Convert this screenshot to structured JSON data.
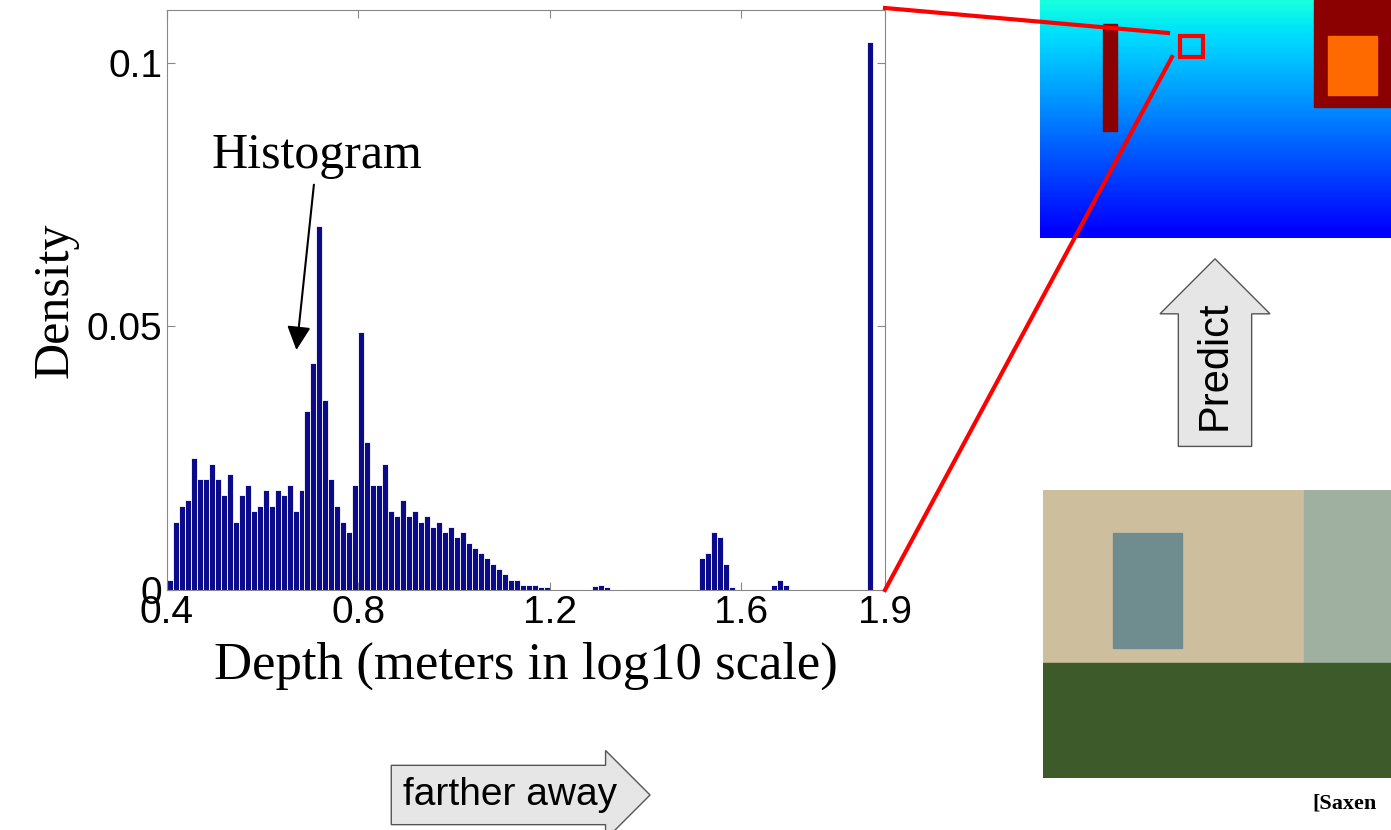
{
  "chart_data": {
    "type": "histogram",
    "bins": [
      0.4,
      0.4125,
      0.425,
      0.4375,
      0.45,
      0.4625,
      0.475,
      0.4875,
      0.5,
      0.5125,
      0.525,
      0.5375,
      0.55,
      0.5625,
      0.575,
      0.5875,
      0.6,
      0.6125,
      0.625,
      0.6375,
      0.65,
      0.6625,
      0.675,
      0.6875,
      0.7,
      0.7125,
      0.725,
      0.7375,
      0.75,
      0.7625,
      0.775,
      0.7875,
      0.8,
      0.8125,
      0.825,
      0.8375,
      0.85,
      0.8625,
      0.875,
      0.8875,
      0.9,
      0.9125,
      0.925,
      0.9375,
      0.95,
      0.9625,
      0.975,
      0.9875,
      1.0,
      1.0125,
      1.025,
      1.0375,
      1.05,
      1.0625,
      1.075,
      1.0875,
      1.1,
      1.1125,
      1.125,
      1.1375,
      1.15,
      1.1625,
      1.175,
      1.1875,
      1.2,
      1.2125,
      1.225,
      1.2375,
      1.25,
      1.2625,
      1.275,
      1.2875,
      1.3,
      1.3125,
      1.325,
      1.3375,
      1.35,
      1.3625,
      1.375,
      1.3875,
      1.4,
      1.4125,
      1.425,
      1.4375,
      1.45,
      1.4625,
      1.475,
      1.4875,
      1.5,
      1.5125,
      1.525,
      1.5375,
      1.55,
      1.5625,
      1.575,
      1.5875,
      1.6,
      1.6125,
      1.625,
      1.6375,
      1.65,
      1.6625,
      1.675,
      1.6875,
      1.7,
      1.7125,
      1.725,
      1.7375,
      1.75,
      1.7625,
      1.775,
      1.7875,
      1.8,
      1.8125,
      1.825,
      1.8375,
      1.85,
      1.8625,
      1.875,
      1.8875,
      1.9
    ],
    "counts": [
      0.002,
      0.013,
      0.016,
      0.017,
      0.025,
      0.021,
      0.021,
      0.024,
      0.021,
      0.018,
      0.022,
      0.013,
      0.018,
      0.02,
      0.015,
      0.016,
      0.019,
      0.016,
      0.019,
      0.018,
      0.02,
      0.015,
      0.019,
      0.034,
      0.043,
      0.069,
      0.036,
      0.021,
      0.016,
      0.013,
      0.011,
      0.02,
      0.049,
      0.028,
      0.02,
      0.02,
      0.024,
      0.015,
      0.014,
      0.017,
      0.014,
      0.015,
      0.013,
      0.014,
      0.012,
      0.013,
      0.011,
      0.012,
      0.01,
      0.011,
      0.009,
      0.008,
      0.007,
      0.006,
      0.005,
      0.004,
      0.003,
      0.002,
      0.002,
      0.001,
      0.001,
      0.001,
      0.0005,
      0.0005,
      0,
      0,
      0,
      0,
      0,
      0,
      0,
      0.0008,
      0.001,
      0.0005,
      0,
      0,
      0,
      0,
      0,
      0,
      0,
      0,
      0,
      0,
      0,
      0,
      0,
      0,
      0,
      0.006,
      0.007,
      0.011,
      0.01,
      0.005,
      0.0005,
      0,
      0,
      0,
      0,
      0,
      0,
      0.001,
      0.002,
      0.001,
      0,
      0,
      0,
      0,
      0,
      0,
      0,
      0,
      0,
      0,
      0,
      0,
      0,
      0.104,
      0,
      0
    ],
    "color": "#0a0a8a",
    "xlabel": "Depth (meters in log10 scale)",
    "ylabel": "Density",
    "xlim": [
      0.4,
      1.9
    ],
    "ylim": [
      0,
      0.11
    ],
    "xticks": [
      0.4,
      0.8,
      1.2,
      1.6,
      1.9
    ],
    "yticks": [
      0,
      0.05,
      0.1
    ],
    "grid": false,
    "annotations": [
      {
        "text": "Histogram",
        "x": 0.67,
        "y": 0.045
      }
    ]
  },
  "slide": {
    "axis_arrow": "farther away",
    "arrow_label": "Predict",
    "citation": "[Saxen"
  }
}
